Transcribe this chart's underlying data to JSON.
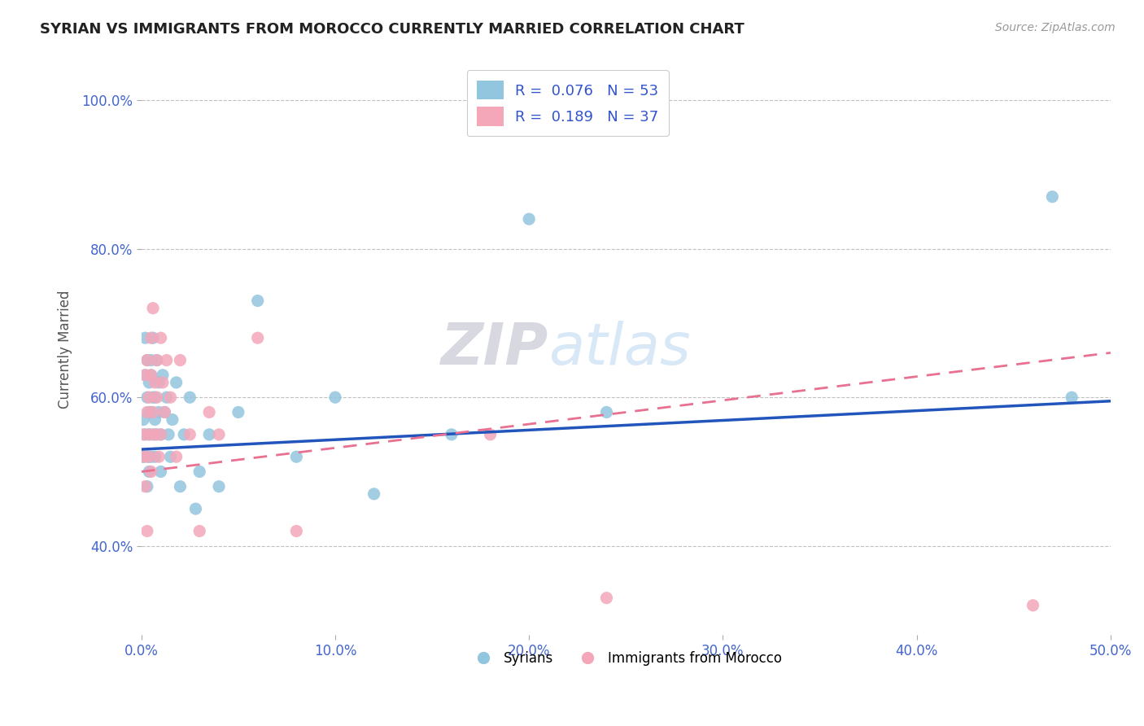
{
  "title": "SYRIAN VS IMMIGRANTS FROM MOROCCO CURRENTLY MARRIED CORRELATION CHART",
  "source": "Source: ZipAtlas.com",
  "ylabel": "Currently Married",
  "x_min": 0.0,
  "x_max": 0.5,
  "y_min": 0.28,
  "y_max": 1.05,
  "x_ticks": [
    0.0,
    0.1,
    0.2,
    0.3,
    0.4,
    0.5
  ],
  "x_tick_labels": [
    "0.0%",
    "10.0%",
    "20.0%",
    "30.0%",
    "40.0%",
    "50.0%"
  ],
  "y_ticks": [
    0.4,
    0.6,
    0.8,
    1.0
  ],
  "y_tick_labels": [
    "40.0%",
    "60.0%",
    "80.0%",
    "100.0%"
  ],
  "syrian_color": "#92C5DE",
  "moroccan_color": "#F4A7B9",
  "syrian_line_color": "#2255BB",
  "moroccan_line_color": "#E87090",
  "R_syrian": 0.076,
  "N_syrian": 53,
  "R_moroccan": 0.189,
  "N_moroccan": 37,
  "watermark_zip": "ZIP",
  "watermark_atlas": "atlas",
  "background_color": "#FFFFFF",
  "grid_color": "#BBBBBB",
  "legend_text_color": "#3355CC",
  "syrian_line_y0": 0.53,
  "syrian_line_y1": 0.595,
  "moroccan_line_y0": 0.5,
  "moroccan_line_y1": 0.66,
  "syrian_points_x": [
    0.001,
    0.001,
    0.002,
    0.002,
    0.002,
    0.003,
    0.003,
    0.003,
    0.003,
    0.004,
    0.004,
    0.004,
    0.004,
    0.005,
    0.005,
    0.005,
    0.005,
    0.006,
    0.006,
    0.006,
    0.007,
    0.007,
    0.007,
    0.008,
    0.008,
    0.009,
    0.009,
    0.01,
    0.01,
    0.011,
    0.012,
    0.013,
    0.014,
    0.015,
    0.016,
    0.018,
    0.02,
    0.022,
    0.025,
    0.028,
    0.03,
    0.035,
    0.04,
    0.05,
    0.06,
    0.08,
    0.1,
    0.12,
    0.16,
    0.2,
    0.24,
    0.47,
    0.48
  ],
  "syrian_points_y": [
    0.52,
    0.57,
    0.63,
    0.68,
    0.55,
    0.6,
    0.52,
    0.65,
    0.48,
    0.58,
    0.55,
    0.62,
    0.5,
    0.65,
    0.52,
    0.58,
    0.63,
    0.6,
    0.55,
    0.68,
    0.57,
    0.52,
    0.6,
    0.65,
    0.55,
    0.58,
    0.62,
    0.5,
    0.55,
    0.63,
    0.58,
    0.6,
    0.55,
    0.52,
    0.57,
    0.62,
    0.48,
    0.55,
    0.6,
    0.45,
    0.5,
    0.55,
    0.48,
    0.58,
    0.73,
    0.52,
    0.6,
    0.47,
    0.55,
    0.84,
    0.58,
    0.87,
    0.6
  ],
  "moroccan_points_x": [
    0.001,
    0.001,
    0.002,
    0.002,
    0.003,
    0.003,
    0.003,
    0.004,
    0.004,
    0.004,
    0.005,
    0.005,
    0.005,
    0.006,
    0.006,
    0.007,
    0.007,
    0.008,
    0.008,
    0.009,
    0.01,
    0.01,
    0.011,
    0.012,
    0.013,
    0.015,
    0.018,
    0.02,
    0.025,
    0.03,
    0.035,
    0.04,
    0.06,
    0.08,
    0.18,
    0.24,
    0.46
  ],
  "moroccan_points_y": [
    0.52,
    0.55,
    0.48,
    0.63,
    0.65,
    0.58,
    0.42,
    0.6,
    0.52,
    0.55,
    0.68,
    0.63,
    0.5,
    0.72,
    0.58,
    0.62,
    0.55,
    0.65,
    0.6,
    0.52,
    0.68,
    0.55,
    0.62,
    0.58,
    0.65,
    0.6,
    0.52,
    0.65,
    0.55,
    0.42,
    0.58,
    0.55,
    0.68,
    0.42,
    0.55,
    0.33,
    0.32
  ]
}
